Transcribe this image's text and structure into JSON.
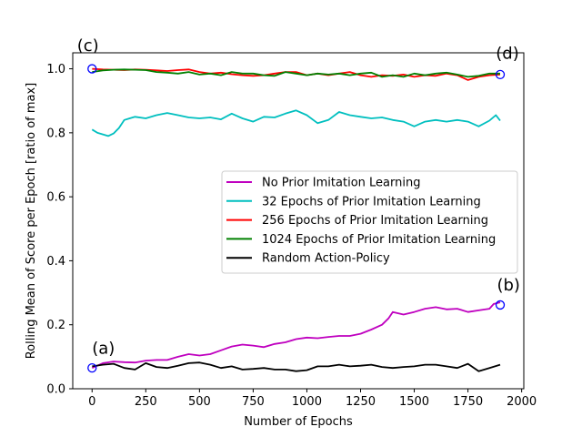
{
  "chart_data": {
    "type": "line",
    "xlabel": "Number of Epochs",
    "ylabel": "Rolling Mean of Score per Epoch [ratio of max]",
    "xlim": [
      -90,
      2010
    ],
    "ylim": [
      0.0,
      1.05
    ],
    "xticks": [
      0,
      250,
      500,
      750,
      1000,
      1250,
      1500,
      1750,
      2000
    ],
    "yticks": [
      0.0,
      0.2,
      0.4,
      0.6,
      0.8,
      1.0
    ],
    "xtick_labels": [
      "0",
      "250",
      "500",
      "750",
      "1000",
      "1250",
      "1500",
      "1750",
      "2000"
    ],
    "ytick_labels": [
      "0.0",
      "0.2",
      "0.4",
      "0.6",
      "0.8",
      "1.0"
    ],
    "grid": false,
    "legend_position": "center-right",
    "series": [
      {
        "name": "No Prior Imitation Learning",
        "color": "#bf00bf",
        "x": [
          0,
          50,
          100,
          150,
          200,
          250,
          300,
          350,
          400,
          450,
          500,
          550,
          600,
          650,
          700,
          750,
          800,
          850,
          900,
          950,
          1000,
          1050,
          1100,
          1150,
          1200,
          1250,
          1300,
          1350,
          1380,
          1400,
          1450,
          1500,
          1550,
          1600,
          1650,
          1700,
          1750,
          1800,
          1850,
          1870,
          1900
        ],
        "y": [
          0.065,
          0.08,
          0.085,
          0.083,
          0.082,
          0.088,
          0.09,
          0.09,
          0.1,
          0.108,
          0.104,
          0.108,
          0.12,
          0.132,
          0.138,
          0.135,
          0.13,
          0.14,
          0.145,
          0.155,
          0.16,
          0.158,
          0.162,
          0.165,
          0.165,
          0.172,
          0.185,
          0.2,
          0.22,
          0.24,
          0.232,
          0.24,
          0.25,
          0.255,
          0.248,
          0.25,
          0.24,
          0.245,
          0.25,
          0.265,
          0.27
        ]
      },
      {
        "name": "32 Epochs of Prior Imitation Learning",
        "color": "#00bfbf",
        "x": [
          0,
          25,
          50,
          75,
          100,
          125,
          150,
          175,
          200,
          250,
          300,
          350,
          400,
          450,
          500,
          550,
          600,
          650,
          700,
          750,
          800,
          850,
          900,
          950,
          1000,
          1050,
          1100,
          1150,
          1200,
          1250,
          1300,
          1350,
          1400,
          1450,
          1500,
          1550,
          1600,
          1650,
          1700,
          1750,
          1800,
          1850,
          1880,
          1900
        ],
        "y": [
          0.81,
          0.8,
          0.795,
          0.79,
          0.798,
          0.815,
          0.84,
          0.845,
          0.85,
          0.845,
          0.855,
          0.862,
          0.855,
          0.848,
          0.845,
          0.848,
          0.842,
          0.86,
          0.845,
          0.835,
          0.85,
          0.848,
          0.86,
          0.87,
          0.855,
          0.83,
          0.84,
          0.865,
          0.855,
          0.85,
          0.845,
          0.848,
          0.84,
          0.835,
          0.82,
          0.835,
          0.84,
          0.835,
          0.84,
          0.835,
          0.82,
          0.838,
          0.855,
          0.838
        ]
      },
      {
        "name": "256 Epochs of Prior Imitation Learning",
        "color": "#ff0000",
        "x": [
          0,
          50,
          100,
          150,
          200,
          250,
          300,
          350,
          400,
          450,
          500,
          550,
          600,
          650,
          700,
          750,
          800,
          850,
          900,
          950,
          1000,
          1050,
          1100,
          1150,
          1200,
          1250,
          1300,
          1350,
          1400,
          1450,
          1500,
          1550,
          1600,
          1650,
          1700,
          1750,
          1800,
          1850,
          1900
        ],
        "y": [
          1.0,
          0.998,
          0.997,
          0.996,
          0.998,
          0.997,
          0.995,
          0.993,
          0.996,
          0.998,
          0.99,
          0.985,
          0.988,
          0.983,
          0.98,
          0.978,
          0.98,
          0.985,
          0.99,
          0.99,
          0.98,
          0.985,
          0.98,
          0.985,
          0.99,
          0.98,
          0.975,
          0.98,
          0.978,
          0.982,
          0.975,
          0.98,
          0.978,
          0.985,
          0.98,
          0.965,
          0.975,
          0.98,
          0.982
        ]
      },
      {
        "name": "1024 Epochs of Prior Imitation Learning",
        "color": "#008000",
        "x": [
          0,
          50,
          100,
          150,
          200,
          250,
          300,
          350,
          400,
          450,
          500,
          550,
          600,
          650,
          700,
          750,
          800,
          850,
          900,
          950,
          1000,
          1050,
          1100,
          1150,
          1200,
          1250,
          1300,
          1350,
          1400,
          1450,
          1500,
          1550,
          1600,
          1650,
          1700,
          1750,
          1800,
          1850,
          1900
        ],
        "y": [
          0.99,
          0.995,
          0.997,
          0.998,
          0.997,
          0.996,
          0.99,
          0.988,
          0.985,
          0.99,
          0.982,
          0.985,
          0.98,
          0.99,
          0.985,
          0.985,
          0.98,
          0.978,
          0.99,
          0.985,
          0.98,
          0.985,
          0.982,
          0.985,
          0.98,
          0.985,
          0.988,
          0.975,
          0.98,
          0.975,
          0.985,
          0.98,
          0.985,
          0.988,
          0.982,
          0.975,
          0.978,
          0.985,
          0.985
        ]
      },
      {
        "name": "Random Action-Policy",
        "color": "#000000",
        "x": [
          0,
          50,
          100,
          150,
          200,
          250,
          300,
          350,
          400,
          450,
          500,
          550,
          600,
          650,
          700,
          750,
          800,
          850,
          900,
          950,
          1000,
          1050,
          1100,
          1150,
          1200,
          1250,
          1300,
          1350,
          1400,
          1450,
          1500,
          1550,
          1600,
          1650,
          1700,
          1750,
          1800,
          1850,
          1900
        ],
        "y": [
          0.07,
          0.075,
          0.078,
          0.065,
          0.06,
          0.08,
          0.068,
          0.065,
          0.072,
          0.08,
          0.082,
          0.075,
          0.065,
          0.07,
          0.06,
          0.062,
          0.065,
          0.06,
          0.06,
          0.055,
          0.058,
          0.07,
          0.07,
          0.075,
          0.07,
          0.072,
          0.075,
          0.068,
          0.065,
          0.068,
          0.07,
          0.075,
          0.075,
          0.07,
          0.065,
          0.078,
          0.055,
          0.065,
          0.075
        ]
      }
    ],
    "annotations": [
      {
        "label": "(a)",
        "x": 0,
        "y": 0.065,
        "text_dx": 0,
        "text_dy": -0.045
      },
      {
        "label": "(b)",
        "x": 1900,
        "y": 0.262,
        "text_dx": -15,
        "text_dy": -0.045
      },
      {
        "label": "(c)",
        "x": 0,
        "y": 1.0,
        "text_dx": -70,
        "text_dy": -0.055
      },
      {
        "label": "(d)",
        "x": 1900,
        "y": 0.982,
        "text_dx": -20,
        "text_dy": -0.05
      }
    ],
    "marker_color": "#0000ff"
  }
}
